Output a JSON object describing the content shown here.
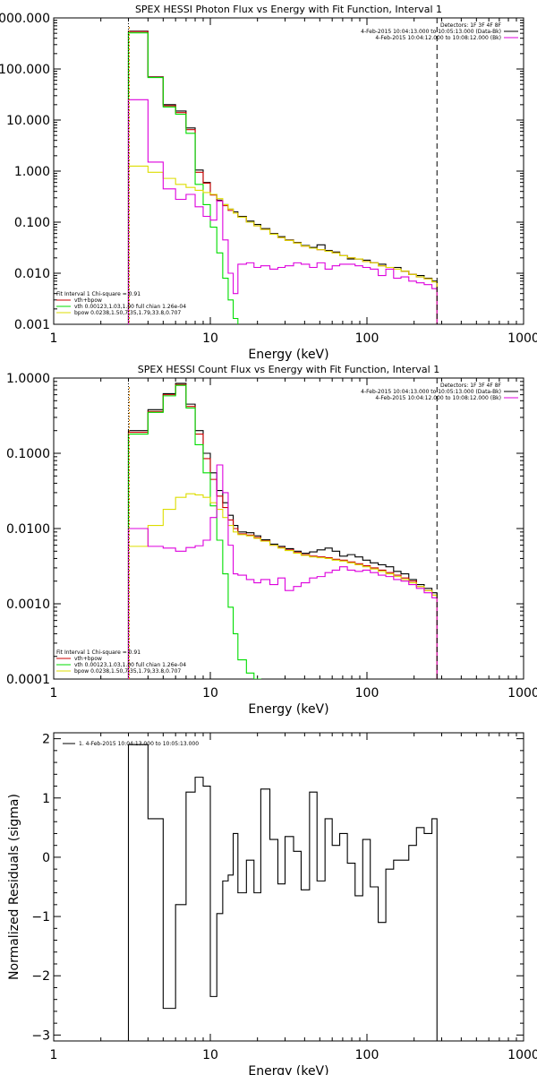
{
  "colors": {
    "background": "#ffffff",
    "axis": "#000000",
    "data": "#000000",
    "total": "#cc0000",
    "vth": "#00dd00",
    "bpow": "#dddd00",
    "background_series": "#dd00dd",
    "cutoff": "#000000",
    "lower_bound": "#dd8800"
  },
  "chart_data": [
    {
      "type": "line",
      "title": "SPEX HESSI Photon Flux vs Energy with Fit Function, Interval 1",
      "xlabel": "Energy (keV)",
      "ylabel": "",
      "xscale": "log",
      "yscale": "log",
      "xlim": [
        1,
        1000
      ],
      "ylim": [
        0.001,
        1000
      ],
      "xticks": [
        1,
        10,
        100,
        1000
      ],
      "xtick_labels": [
        "1",
        "10",
        "100",
        "1000"
      ],
      "yticks": [
        0.001,
        0.01,
        0.1,
        1,
        10,
        100,
        1000
      ],
      "ytick_labels": [
        "0.001",
        "0.010",
        "0.100",
        "1.000",
        "10.000",
        "100.000",
        "1000.000"
      ],
      "legend_top_right": [
        "Detectors: 1F 3F 4F 8F",
        "4-Feb-2015 10:04:13.000 to 10:05:13.000 (Data-Bk)",
        "4-Feb-2015 10:04:12.000 to 10:08:12.000 (Bk)"
      ],
      "legend_bottom_left": {
        "header": "Fit Interval  1    Chi-square = 0.91",
        "entries": [
          "vth+bpow",
          "vth 0.00123,1.03,1.00  full chian 1.26e-04",
          "bpow 0.0238,1.50,7.35,1.79,33.8,0.707"
        ]
      },
      "vertical_lines": [
        {
          "x": 280,
          "style": "dashed",
          "label": "cutoff"
        },
        {
          "x": 3,
          "style": "dotted",
          "label": "lower bound"
        }
      ],
      "series": [
        {
          "name": "Data-Bk",
          "color_key": "data",
          "edges": [
            3,
            4,
            5,
            6,
            7,
            8,
            9,
            10,
            11,
            12,
            13,
            14,
            15,
            17,
            19,
            21,
            24,
            27,
            30,
            34,
            38,
            43,
            48,
            54,
            60,
            67,
            75,
            84,
            94,
            105,
            118,
            132,
            148,
            165,
            185,
            207,
            232,
            260,
            280
          ],
          "values": [
            550,
            70,
            20,
            15,
            7,
            1.05,
            0.6,
            0.35,
            0.27,
            0.22,
            0.18,
            0.16,
            0.13,
            0.105,
            0.09,
            0.075,
            0.06,
            0.052,
            0.045,
            0.04,
            0.035,
            0.032,
            0.036,
            0.028,
            0.026,
            0.022,
            0.019,
            0.019,
            0.018,
            0.016,
            0.015,
            0.013,
            0.013,
            0.011,
            0.0095,
            0.009,
            0.008,
            0.007
          ]
        },
        {
          "name": "vth+bpow",
          "color_key": "total",
          "edges": [
            3,
            4,
            5,
            6,
            7,
            8,
            9,
            10,
            11,
            12,
            13,
            14,
            15,
            17,
            19,
            21,
            24,
            27,
            30,
            34,
            38,
            43,
            48,
            54,
            60,
            67,
            75,
            84,
            94,
            105,
            118,
            132,
            148,
            165,
            185,
            207,
            232,
            260,
            280
          ],
          "values": [
            540,
            69,
            19,
            14,
            6.5,
            0.95,
            0.58,
            0.34,
            0.26,
            0.21,
            0.17,
            0.15,
            0.125,
            0.1,
            0.085,
            0.072,
            0.058,
            0.05,
            0.044,
            0.039,
            0.034,
            0.031,
            0.029,
            0.027,
            0.025,
            0.022,
            0.02,
            0.019,
            0.017,
            0.016,
            0.014,
            0.013,
            0.012,
            0.011,
            0.0095,
            0.0085,
            0.0078,
            0.0068
          ]
        },
        {
          "name": "vth",
          "color_key": "vth",
          "edges": [
            3,
            4,
            5,
            6,
            7,
            8,
            9,
            10,
            11,
            12,
            13,
            14,
            15
          ],
          "values": [
            510,
            68,
            18,
            13,
            5.5,
            0.55,
            0.22,
            0.08,
            0.025,
            0.008,
            0.003,
            0.0013
          ]
        },
        {
          "name": "bpow",
          "color_key": "bpow",
          "edges": [
            3,
            4,
            5,
            6,
            7,
            8,
            9,
            10,
            11,
            12,
            13,
            14,
            15,
            17,
            19,
            21,
            24,
            27,
            30,
            34,
            38,
            43,
            48,
            54,
            60,
            67,
            75,
            84,
            94,
            105,
            118,
            132,
            148,
            165,
            185,
            207,
            232,
            260,
            280
          ],
          "values": [
            1.25,
            0.95,
            0.72,
            0.55,
            0.48,
            0.42,
            0.38,
            0.35,
            0.29,
            0.22,
            0.18,
            0.15,
            0.125,
            0.1,
            0.085,
            0.072,
            0.058,
            0.05,
            0.044,
            0.039,
            0.034,
            0.031,
            0.029,
            0.027,
            0.025,
            0.022,
            0.02,
            0.019,
            0.017,
            0.016,
            0.014,
            0.013,
            0.012,
            0.011,
            0.0095,
            0.0085,
            0.0078,
            0.0068
          ]
        },
        {
          "name": "Bk",
          "color_key": "background_series",
          "edges": [
            3,
            4,
            5,
            6,
            7,
            8,
            9,
            10,
            11,
            12,
            13,
            14,
            15,
            17,
            19,
            21,
            24,
            27,
            30,
            34,
            38,
            43,
            48,
            54,
            60,
            67,
            75,
            84,
            94,
            105,
            118,
            132,
            148,
            165,
            185,
            207,
            232,
            260,
            280
          ],
          "values": [
            25,
            1.5,
            0.45,
            0.28,
            0.35,
            0.2,
            0.13,
            0.11,
            0.26,
            0.045,
            0.01,
            0.004,
            0.015,
            0.016,
            0.013,
            0.014,
            0.012,
            0.013,
            0.014,
            0.016,
            0.015,
            0.013,
            0.016,
            0.012,
            0.014,
            0.015,
            0.015,
            0.014,
            0.013,
            0.012,
            0.009,
            0.012,
            0.008,
            0.0085,
            0.007,
            0.0065,
            0.006,
            0.005
          ]
        }
      ]
    },
    {
      "type": "line",
      "title": "SPEX HESSI Count Flux vs Energy with Fit Function, Interval 1",
      "xlabel": "Energy (keV)",
      "ylabel": "",
      "xscale": "log",
      "yscale": "log",
      "xlim": [
        1,
        1000
      ],
      "ylim": [
        0.0001,
        1
      ],
      "xticks": [
        1,
        10,
        100,
        1000
      ],
      "xtick_labels": [
        "1",
        "10",
        "100",
        "1000"
      ],
      "yticks": [
        0.0001,
        0.001,
        0.01,
        0.1,
        1
      ],
      "ytick_labels": [
        "0.0001",
        "0.0010",
        "0.0100",
        "0.1000",
        "1.0000"
      ],
      "legend_top_right": [
        "Detectors: 1F 3F 4F 8F",
        "4-Feb-2015 10:04:13.000 to 10:05:13.000 (Data-Bk)",
        "4-Feb-2015 10:04:12.000 to 10:08:12.000 (Bk)"
      ],
      "legend_bottom_left": {
        "header": "Fit Interval  1    Chi-square = 0.91",
        "entries": [
          "vth+bpow",
          "vth 0.00123,1.03,1.00  full chian 1.26e-04",
          "bpow 0.0238,1.50,7.35,1.79,33.8,0.707"
        ]
      },
      "vertical_lines": [
        {
          "x": 280,
          "style": "dashed",
          "label": "cutoff"
        },
        {
          "x": 3,
          "style": "dotted",
          "label": "lower bound"
        }
      ],
      "series": [
        {
          "name": "Data-Bk",
          "color_key": "data",
          "edges": [
            3,
            4,
            5,
            6,
            7,
            8,
            9,
            10,
            11,
            12,
            13,
            14,
            15,
            17,
            19,
            21,
            24,
            27,
            30,
            34,
            38,
            43,
            48,
            54,
            60,
            67,
            75,
            84,
            94,
            105,
            118,
            132,
            148,
            165,
            185,
            207,
            232,
            260,
            280
          ],
          "values": [
            0.2,
            0.38,
            0.62,
            0.85,
            0.45,
            0.2,
            0.1,
            0.055,
            0.032,
            0.022,
            0.015,
            0.011,
            0.009,
            0.0088,
            0.008,
            0.0071,
            0.0062,
            0.0058,
            0.0054,
            0.005,
            0.0047,
            0.0049,
            0.0052,
            0.0055,
            0.005,
            0.0043,
            0.0045,
            0.0042,
            0.0038,
            0.0035,
            0.0033,
            0.0031,
            0.0027,
            0.0025,
            0.0021,
            0.0018,
            0.0016,
            0.0014
          ]
        },
        {
          "name": "vth+bpow",
          "color_key": "total",
          "edges": [
            3,
            4,
            5,
            6,
            7,
            8,
            9,
            10,
            11,
            12,
            13,
            14,
            15,
            17,
            19,
            21,
            24,
            27,
            30,
            34,
            38,
            43,
            48,
            54,
            60,
            67,
            75,
            84,
            94,
            105,
            118,
            132,
            148,
            165,
            185,
            207,
            232,
            260,
            280
          ],
          "values": [
            0.19,
            0.36,
            0.6,
            0.82,
            0.42,
            0.18,
            0.085,
            0.045,
            0.027,
            0.019,
            0.013,
            0.01,
            0.0085,
            0.0082,
            0.0076,
            0.0069,
            0.006,
            0.0056,
            0.0052,
            0.0048,
            0.0045,
            0.0043,
            0.0042,
            0.0041,
            0.0039,
            0.0038,
            0.0036,
            0.0034,
            0.0032,
            0.003,
            0.0028,
            0.0026,
            0.0024,
            0.0022,
            0.002,
            0.0017,
            0.0015,
            0.0013
          ]
        },
        {
          "name": "vth",
          "color_key": "vth",
          "edges": [
            3,
            4,
            5,
            6,
            7,
            8,
            9,
            10,
            11,
            12,
            13,
            14,
            15,
            17,
            19,
            21
          ],
          "values": [
            0.18,
            0.35,
            0.58,
            0.8,
            0.4,
            0.13,
            0.055,
            0.02,
            0.007,
            0.0025,
            0.0009,
            0.0004,
            0.00018,
            0.00012,
            0.0001
          ]
        },
        {
          "name": "bpow",
          "color_key": "bpow",
          "edges": [
            3,
            4,
            5,
            6,
            7,
            8,
            9,
            10,
            11,
            12,
            13,
            14,
            15,
            17,
            19,
            21,
            24,
            27,
            30,
            34,
            38,
            43,
            48,
            54,
            60,
            67,
            75,
            84,
            94,
            105,
            118,
            132,
            148,
            165,
            185,
            207,
            232,
            260,
            280
          ],
          "values": [
            0.0058,
            0.011,
            0.018,
            0.026,
            0.029,
            0.028,
            0.026,
            0.022,
            0.018,
            0.014,
            0.011,
            0.009,
            0.0083,
            0.008,
            0.0074,
            0.0068,
            0.006,
            0.0055,
            0.0051,
            0.0047,
            0.0044,
            0.0042,
            0.0041,
            0.004,
            0.0038,
            0.0037,
            0.0035,
            0.0033,
            0.0031,
            0.0029,
            0.0027,
            0.0025,
            0.0023,
            0.0021,
            0.0019,
            0.0017,
            0.0015,
            0.0013
          ]
        },
        {
          "name": "Bk",
          "color_key": "background_series",
          "edges": [
            3,
            4,
            5,
            6,
            7,
            8,
            9,
            10,
            11,
            12,
            13,
            14,
            15,
            17,
            19,
            21,
            24,
            27,
            30,
            34,
            38,
            43,
            48,
            54,
            60,
            67,
            75,
            84,
            94,
            105,
            118,
            132,
            148,
            165,
            185,
            207,
            232,
            260,
            280
          ],
          "values": [
            0.01,
            0.0058,
            0.0055,
            0.005,
            0.0056,
            0.0059,
            0.007,
            0.014,
            0.07,
            0.03,
            0.006,
            0.0025,
            0.0024,
            0.0021,
            0.0019,
            0.0021,
            0.0018,
            0.0022,
            0.0015,
            0.0017,
            0.0019,
            0.0022,
            0.0023,
            0.0026,
            0.0028,
            0.0031,
            0.0028,
            0.0027,
            0.0028,
            0.0026,
            0.0024,
            0.0023,
            0.0021,
            0.002,
            0.0018,
            0.0016,
            0.0014,
            0.0012
          ]
        }
      ]
    },
    {
      "type": "line",
      "title": "",
      "xlabel": "Energy (keV)",
      "ylabel": "Normalized Residuals (sigma)",
      "xscale": "log",
      "yscale": "linear",
      "xlim": [
        1,
        1000
      ],
      "ylim": [
        -3.1,
        2.1
      ],
      "xticks": [
        1,
        10,
        100,
        1000
      ],
      "xtick_labels": [
        "1",
        "10",
        "100",
        "1000"
      ],
      "yticks": [
        -3,
        -2,
        -1,
        0,
        1,
        2
      ],
      "ytick_labels": [
        "−3",
        "−2",
        "−1",
        "0",
        "1",
        "2"
      ],
      "legend_top_left": "1.  4-Feb-2015 10:04:13.000 to 10:05:13.000",
      "series": [
        {
          "name": "1.  4-Feb-2015 10:04:13.000 to 10:05:13.000",
          "color_key": "data",
          "edges": [
            3,
            4,
            5,
            6,
            7,
            8,
            9,
            10,
            11,
            12,
            13,
            14,
            15,
            17,
            19,
            21,
            24,
            27,
            30,
            34,
            38,
            43,
            48,
            54,
            60,
            67,
            75,
            84,
            94,
            105,
            118,
            132,
            148,
            165,
            185,
            207,
            232,
            260,
            280
          ],
          "values": [
            1.9,
            0.65,
            -2.55,
            -0.8,
            1.1,
            1.35,
            1.2,
            -2.35,
            -0.95,
            -0.4,
            -0.3,
            0.4,
            -0.6,
            -0.05,
            -0.6,
            1.15,
            0.3,
            -0.45,
            0.35,
            0.1,
            -0.55,
            1.1,
            -0.4,
            0.65,
            0.2,
            0.4,
            -0.1,
            -0.65,
            0.3,
            -0.5,
            -1.1,
            -0.2,
            -0.05,
            -0.05,
            0.2,
            0.5,
            0.4,
            0.65
          ]
        }
      ]
    }
  ]
}
